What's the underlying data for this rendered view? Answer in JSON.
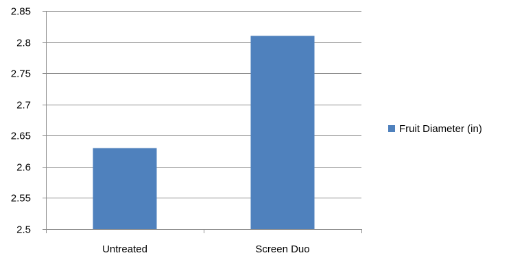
{
  "chart_data": {
    "type": "bar",
    "categories": [
      "Untreated",
      "Screen Duo"
    ],
    "series": [
      {
        "name": "Fruit Diameter (in)",
        "values": [
          2.63,
          2.81
        ],
        "color": "#4F81BD"
      }
    ],
    "title": "",
    "xlabel": "",
    "ylabel": "",
    "ylim": [
      2.5,
      2.85
    ],
    "yticks": [
      "2.5",
      "2.55",
      "2.6",
      "2.65",
      "2.7",
      "2.75",
      "2.8",
      "2.85"
    ],
    "grid": true,
    "gridline_color": "#8C8C8C",
    "legend_position": "right"
  }
}
